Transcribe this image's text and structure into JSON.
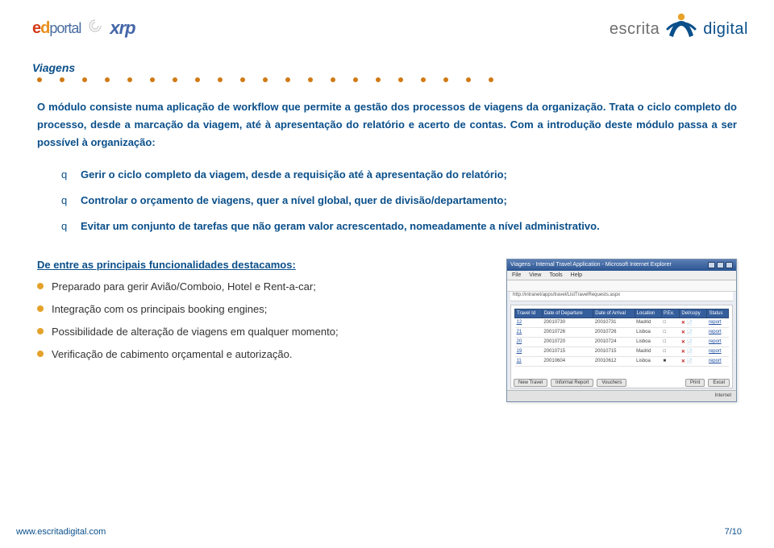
{
  "colors": {
    "brand_blue": "#0a4f8a",
    "brand_orange": "#e4a22a",
    "dot_orange": "#d07a14",
    "ed_e": "#d43b18",
    "ed_d": "#e98f1c",
    "ed_rest": "#4a6da0",
    "xrp": "#4466a8",
    "logo_gray": "#6f6f6f",
    "body_text": "#333333",
    "table_header": "#355e9c"
  },
  "header": {
    "logo_left_ed": "ed",
    "logo_left_portal": "portal",
    "logo_left_xrp": "xrp",
    "logo_right_pre": "escrita",
    "logo_right_accent": "digital"
  },
  "section": {
    "title": "Viagens",
    "dot_count": 21
  },
  "intro": "O módulo consiste numa aplicação de workflow que permite a gestão dos processos de viagens da organização. Trata o ciclo completo do processo, desde a marcação da viagem, até à apresentação do relatório e acerto de contas. Com a introdução deste módulo passa a ser possível à organização:",
  "bullets": [
    "Gerir o ciclo completo da viagem, desde a requisição até à apresentação do relatório;",
    "Controlar o orçamento de viagens, quer a nível global, quer de divisão/departamento;",
    "Evitar um conjunto de tarefas que não geram valor acrescentado, nomeadamente a nível administrativo."
  ],
  "features": {
    "title": "De entre as principais funcionalidades destacamos:",
    "items": [
      "Preparado para gerir Avião/Comboio, Hotel e Rent-a-car;",
      "Integração com os principais booking engines;",
      "Possibilidade de alteração de viagens em qualquer momento;",
      "Verificação de cabimento orçamental e autorização."
    ]
  },
  "screenshot": {
    "title": "Viagens - Internal Travel Application - Microsoft Internet Explorer",
    "menu": [
      "File",
      "View",
      "Tools",
      "Help"
    ],
    "address": "http://intranet/apps/travel/ListTravelRequests.aspx",
    "table": {
      "columns": [
        "Travel Id",
        "Date of Departure",
        "Date of Arrival",
        "Location",
        "P.Ex.",
        "Del/copy",
        "Status"
      ],
      "rows": [
        [
          "12",
          "20010730",
          "20010731",
          "Madrid",
          "□",
          "✕ 📄",
          "report"
        ],
        [
          "21",
          "20010726",
          "20010726",
          "Lisboa",
          "□",
          "✕ 📄",
          "report"
        ],
        [
          "20",
          "20010720",
          "20010724",
          "Lisboa",
          "□",
          "✕ 📄",
          "report"
        ],
        [
          "19",
          "20010715",
          "20010715",
          "Madrid",
          "□",
          "✕ 📄",
          "report"
        ],
        [
          "11",
          "20010604",
          "20010612",
          "Lisboa",
          "■",
          "✕ 📄",
          "report"
        ]
      ]
    },
    "buttons_left": [
      "New Travel",
      "Informal Report",
      "Vouchers"
    ],
    "buttons_right": [
      "Print",
      "Excel"
    ],
    "status_right": "Internet"
  },
  "footer": {
    "url": "www.escritadigital.com",
    "page": "7/10"
  }
}
